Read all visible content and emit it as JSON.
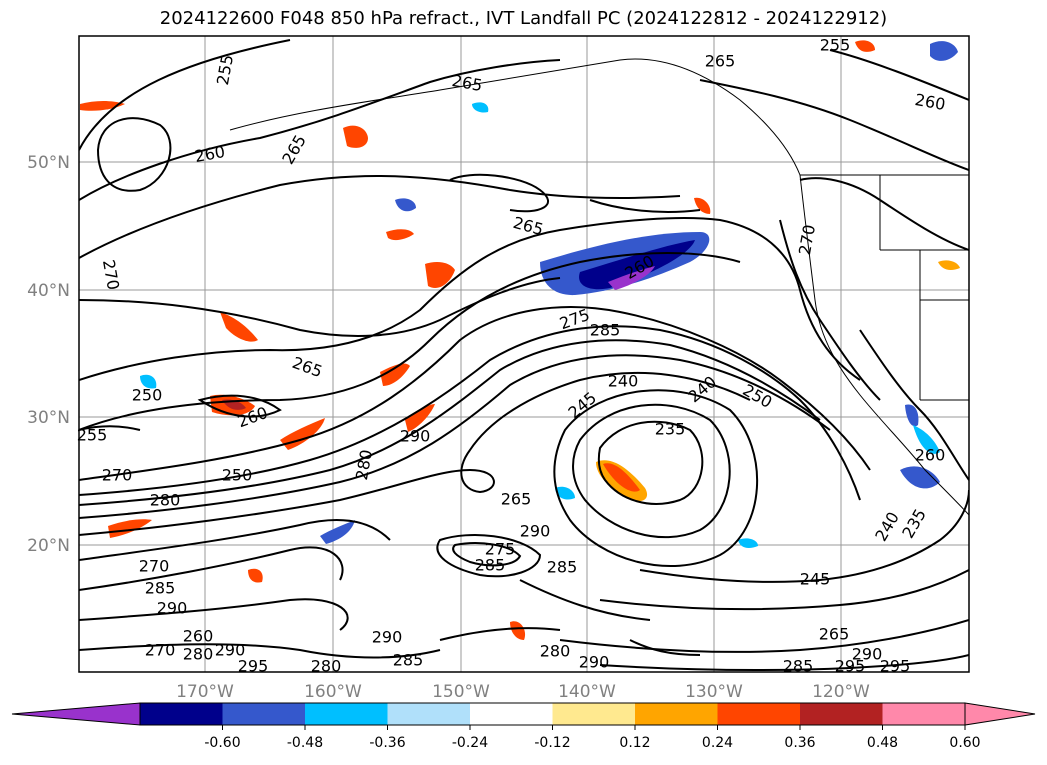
{
  "title": "2024122600 F048 850 hPa refract., IVT Landfall PC (2024122812 - 2024122912)",
  "lon_ticks": [
    "170°W",
    "160°W",
    "150°W",
    "140°W",
    "130°W",
    "120°W"
  ],
  "lat_ticks": [
    "50°N",
    "40°N",
    "30°N",
    "20°N"
  ],
  "contour_labels": [
    {
      "text": "255"
    },
    {
      "text": "255"
    },
    {
      "text": "260"
    },
    {
      "text": "265"
    },
    {
      "text": "265"
    },
    {
      "text": "260"
    },
    {
      "text": "265"
    },
    {
      "text": "270"
    },
    {
      "text": "270"
    },
    {
      "text": "260"
    },
    {
      "text": "265"
    },
    {
      "text": "265"
    },
    {
      "text": "275"
    },
    {
      "text": "285"
    },
    {
      "text": "240"
    },
    {
      "text": "245"
    },
    {
      "text": "240"
    },
    {
      "text": "250"
    },
    {
      "text": "235"
    },
    {
      "text": "250"
    },
    {
      "text": "260"
    },
    {
      "text": "255"
    },
    {
      "text": "290"
    },
    {
      "text": "270"
    },
    {
      "text": "250"
    },
    {
      "text": "280"
    },
    {
      "text": "280"
    },
    {
      "text": "265"
    },
    {
      "text": "290"
    },
    {
      "text": "275"
    },
    {
      "text": "285"
    },
    {
      "text": "285"
    },
    {
      "text": "270"
    },
    {
      "text": "285"
    },
    {
      "text": "290"
    },
    {
      "text": "260"
    },
    {
      "text": "270"
    },
    {
      "text": "280"
    },
    {
      "text": "290"
    },
    {
      "text": "295"
    },
    {
      "text": "280"
    },
    {
      "text": "285"
    },
    {
      "text": "290"
    },
    {
      "text": "280"
    },
    {
      "text": "290"
    },
    {
      "text": "285"
    },
    {
      "text": "295"
    },
    {
      "text": "295"
    },
    {
      "text": "290"
    },
    {
      "text": "265"
    },
    {
      "text": "245"
    },
    {
      "text": "240"
    },
    {
      "text": "235"
    },
    {
      "text": "260"
    }
  ],
  "colorbar": {
    "colors": [
      "#9932cc",
      "#00008b",
      "#3558cc",
      "#00bfff",
      "#b0e0fa",
      "#ffffff",
      "#ffe98f",
      "#ffa500",
      "#ff4500",
      "#b22222",
      "#ff88aa",
      "#ff88aa"
    ],
    "ticks": [
      "-0.60",
      "-0.48",
      "-0.36",
      "-0.24",
      "-0.12",
      "0.12",
      "0.24",
      "0.36",
      "0.48",
      "0.60"
    ]
  }
}
